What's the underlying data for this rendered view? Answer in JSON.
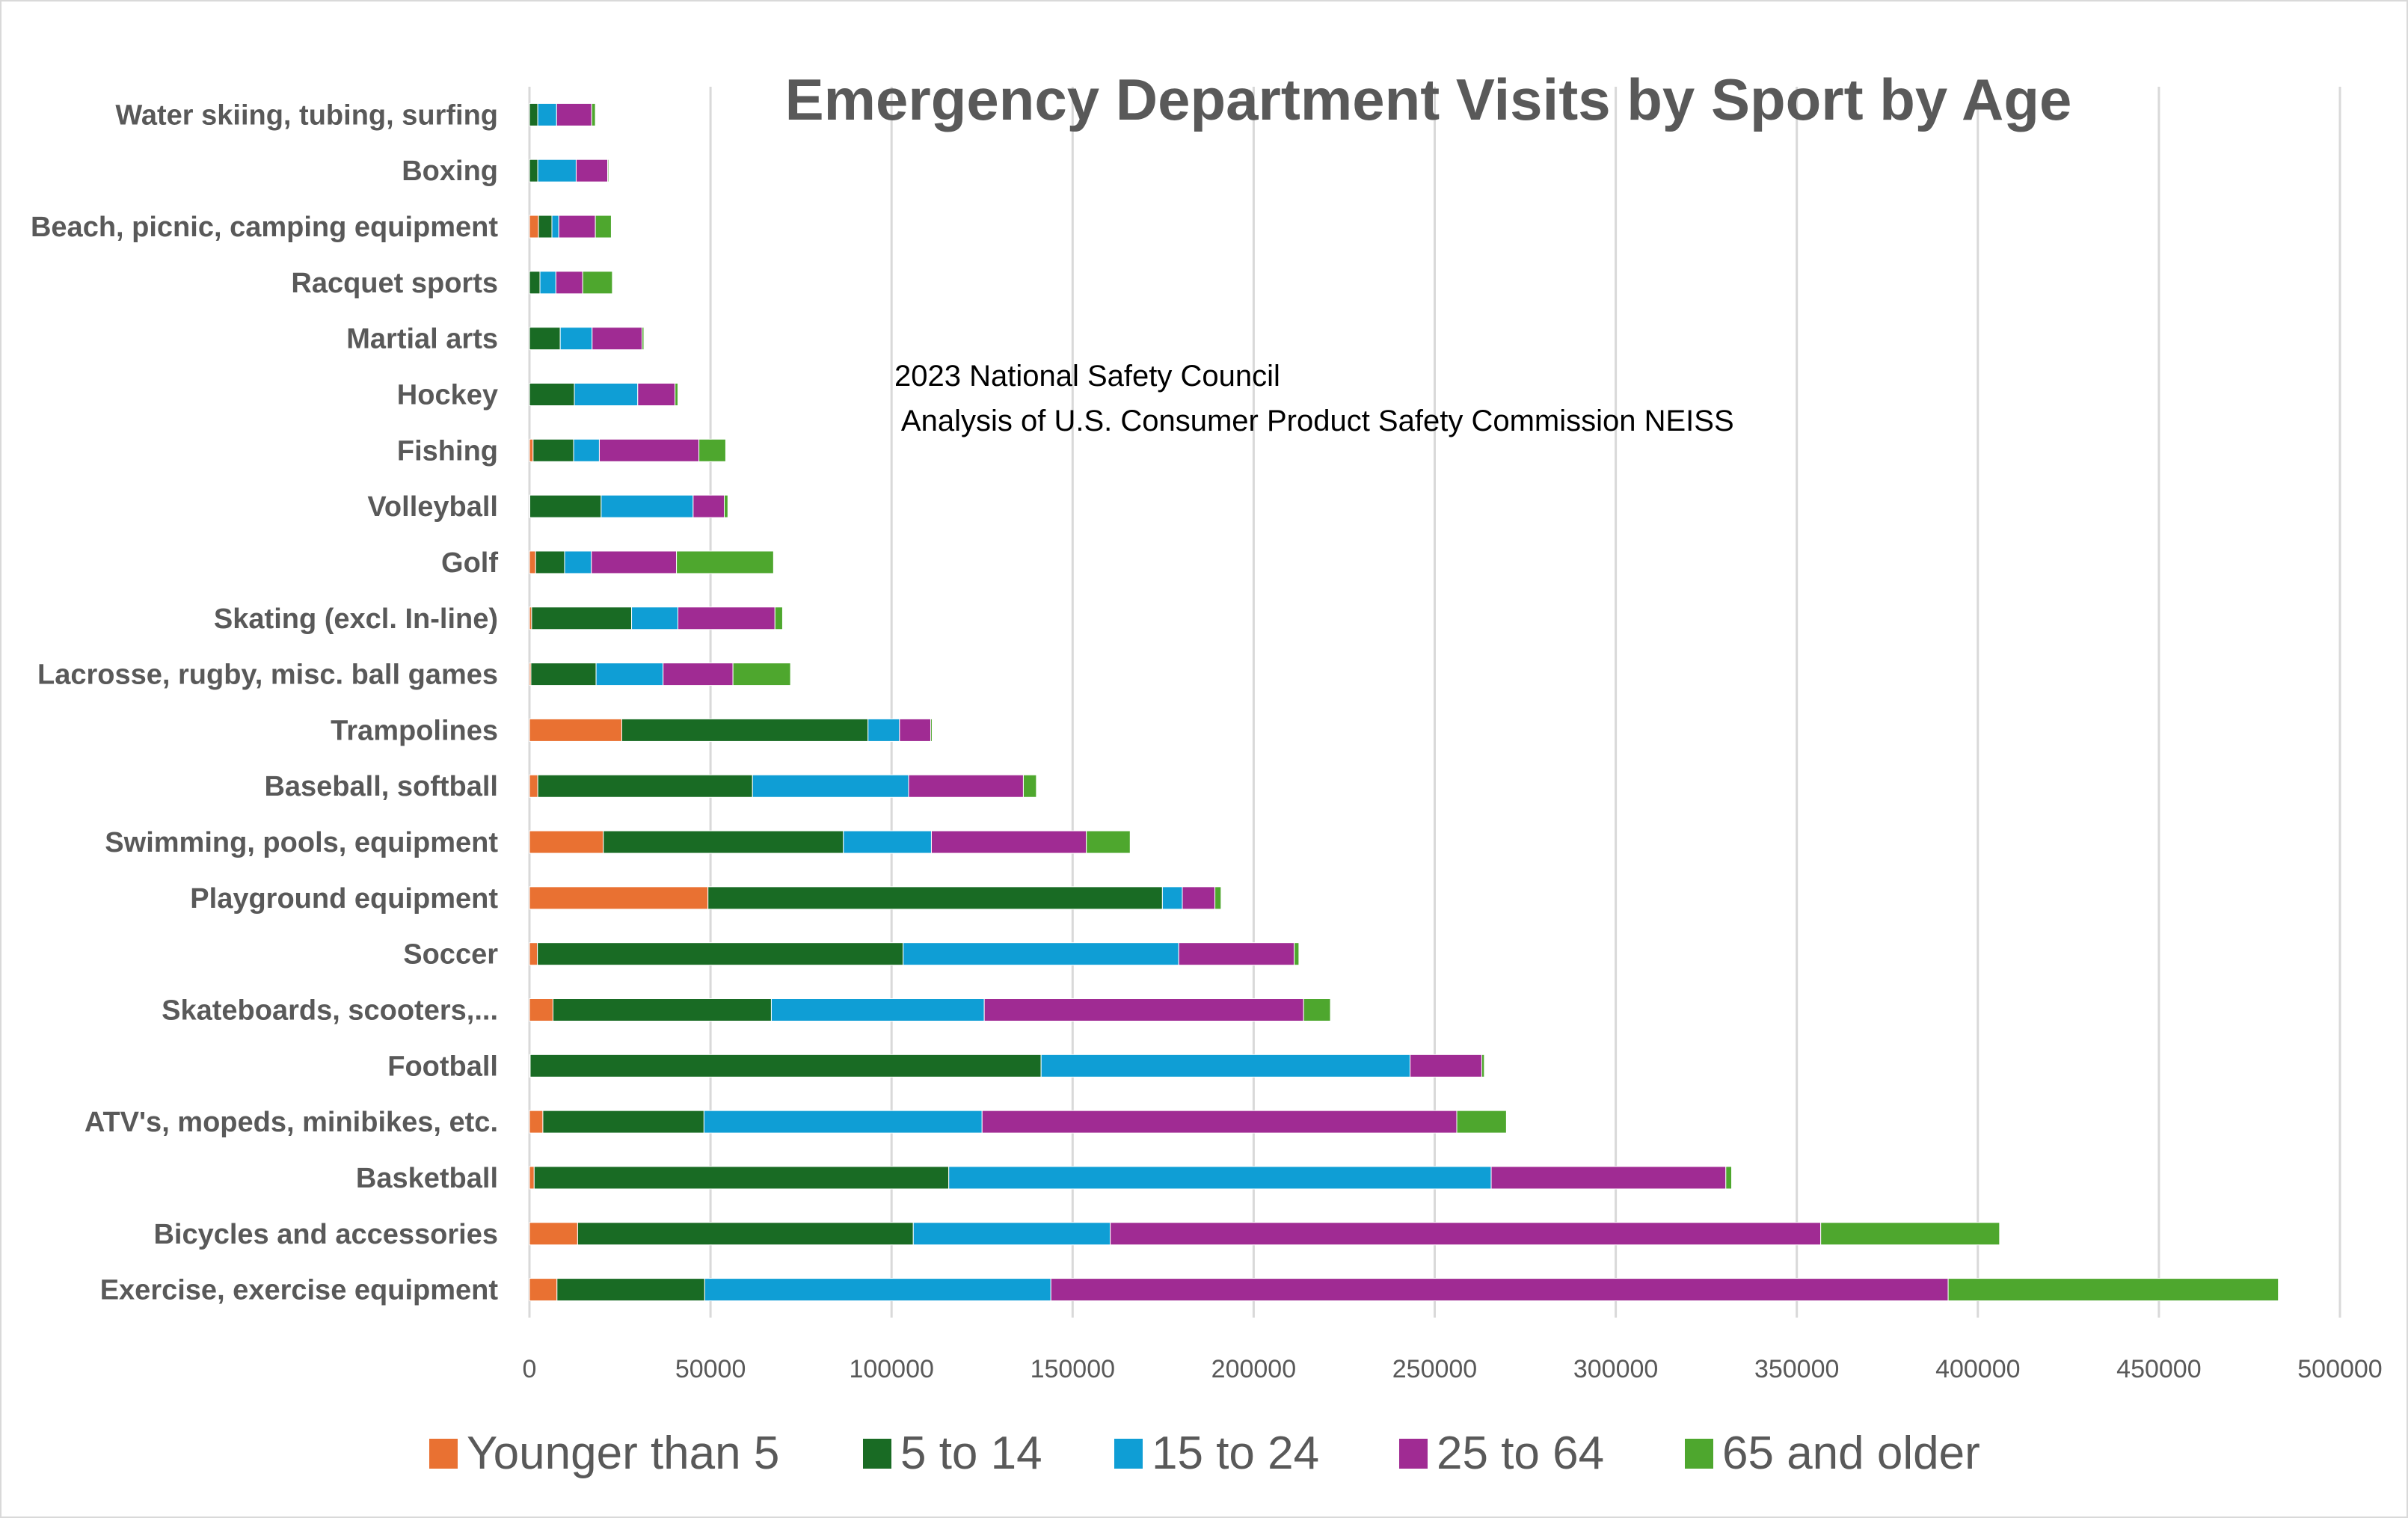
{
  "chart_data": {
    "type": "bar",
    "orientation": "horizontal",
    "stacked": true,
    "title": "Emergency Department Visits by Sport by Age",
    "annotation": [
      "2023 National Safety Council",
      " Analysis of U.S. Consumer Product Safety Commission NEISS"
    ],
    "xlabel": "",
    "ylabel": "",
    "xlim": [
      0,
      500000
    ],
    "x_ticks": [
      "0",
      "50000",
      "100000",
      "150000",
      "200000",
      "250000",
      "300000",
      "350000",
      "400000",
      "450000",
      "500000"
    ],
    "x_tick_values": [
      0,
      50000,
      100000,
      150000,
      200000,
      250000,
      300000,
      350000,
      400000,
      450000,
      500000
    ],
    "grid": true,
    "legend_position": "bottom",
    "categories": [
      "Water skiing, tubing, surfing",
      "Boxing",
      "Beach, picnic, camping equipment",
      "Racquet sports",
      "Martial arts",
      "Hockey",
      "Fishing",
      "Volleyball",
      "Golf",
      "Skating (excl. In-line)",
      "Lacrosse, rugby, misc. ball games",
      "Trampolines",
      "Baseball, softball",
      "Swimming, pools, equipment",
      "Playground equipment",
      "Soccer",
      "Skateboards, scooters,...",
      "Football",
      "ATV's, mopeds, minibikes, etc.",
      "Basketball",
      "Bicycles and accessories",
      "Exercise, exercise equipment"
    ],
    "series": [
      {
        "name": "Younger than 5",
        "color": "#E97132",
        "values": [
          0,
          0,
          2500,
          0,
          0,
          0,
          1000,
          100,
          1700,
          600,
          400,
          25500,
          2300,
          20400,
          49300,
          2200,
          6500,
          200,
          3700,
          1300,
          13300,
          7600
        ]
      },
      {
        "name": "5 to 14",
        "color": "#196B24",
        "values": [
          2300,
          2300,
          3700,
          2900,
          8500,
          12400,
          11200,
          19700,
          8000,
          27600,
          18000,
          68000,
          59300,
          66300,
          125500,
          101000,
          60300,
          141100,
          44500,
          114500,
          92700,
          40800
        ]
      },
      {
        "name": "15 to 24",
        "color": "#0F9ED5",
        "values": [
          5200,
          10600,
          1900,
          4400,
          8800,
          17500,
          7100,
          25400,
          7400,
          12800,
          18500,
          8700,
          43100,
          24300,
          5500,
          76100,
          58800,
          101900,
          76800,
          149800,
          54400,
          95600
        ]
      },
      {
        "name": "25 to 64",
        "color": "#A02B93",
        "values": [
          9700,
          8700,
          10100,
          7400,
          13800,
          10300,
          27500,
          8600,
          23500,
          26800,
          19300,
          8600,
          31700,
          42800,
          9000,
          31900,
          88200,
          19800,
          131100,
          64800,
          196200,
          247800
        ]
      },
      {
        "name": "65 and older",
        "color": "#4EA72E",
        "values": [
          1000,
          300,
          4400,
          8200,
          500,
          800,
          7400,
          1000,
          26800,
          2100,
          15900,
          400,
          3600,
          12100,
          1700,
          1300,
          7400,
          700,
          13700,
          1600,
          49400,
          91200
        ]
      }
    ]
  }
}
